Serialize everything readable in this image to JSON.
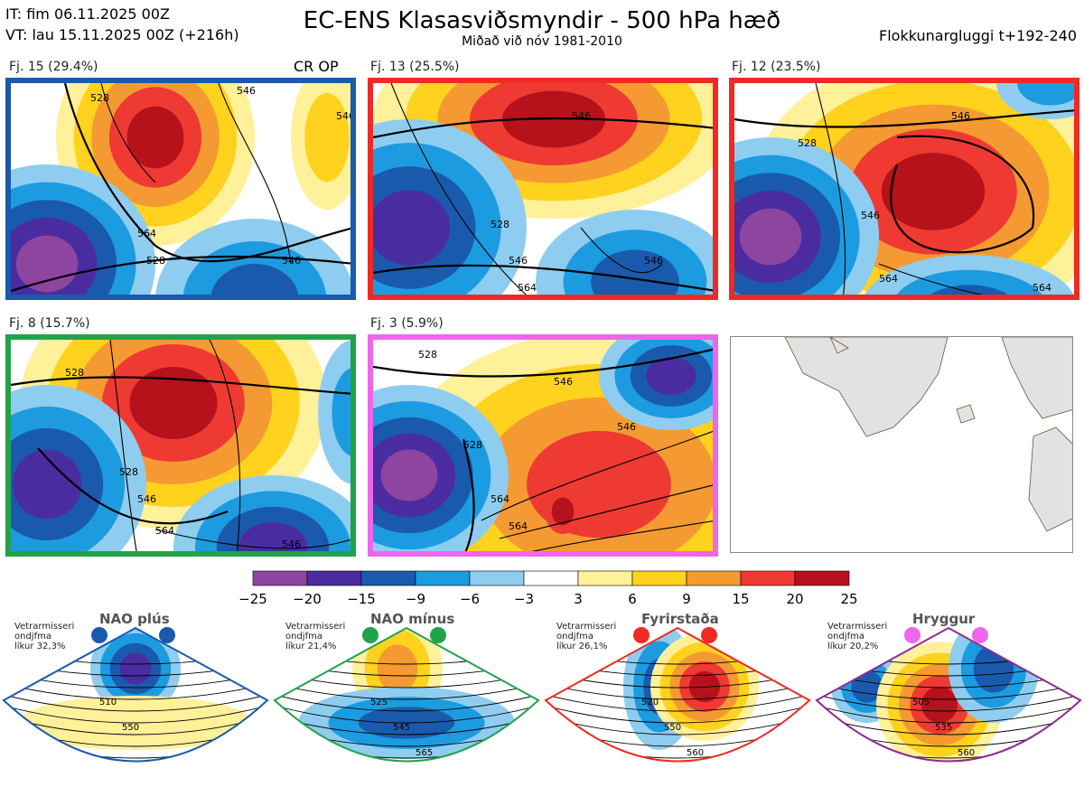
{
  "header": {
    "issued": "IT: fim 06.11.2025 00Z",
    "valid": "VT: lau 15.11.2025 00Z  (+216h)",
    "title": "EC-ENS Klasasviðsmyndir - 500 hPa hæð",
    "subtitle": "Miðað við nóv 1981-2010",
    "window": "Flokkunargluggi t+192-240"
  },
  "colors": {
    "scale": [
      "#8e45a0",
      "#4a2ca0",
      "#1a5aad",
      "#1d9be0",
      "#8fcdf0",
      "#ffffff",
      "#fff09a",
      "#ffd21e",
      "#f59a32",
      "#ee3a33",
      "#b5121b"
    ]
  },
  "chart_data": [
    {
      "type": "heatmap",
      "title": "Fj. 15 (29.4%)",
      "tag": "CR OP",
      "frame_color": "#1a5aad",
      "members": 15,
      "percent": 29.4,
      "contour_labels": [
        "528",
        "546",
        "564",
        "528",
        "546",
        "546"
      ]
    },
    {
      "type": "heatmap",
      "title": "Fj. 13 (25.5%)",
      "frame_color": "#ee2a24",
      "members": 13,
      "percent": 25.5,
      "contour_labels": [
        "546",
        "528",
        "546",
        "546",
        "564"
      ]
    },
    {
      "type": "heatmap",
      "title": "Fj. 12 (23.5%)",
      "frame_color": "#ee2a24",
      "members": 12,
      "percent": 23.5,
      "contour_labels": [
        "546",
        "528",
        "546",
        "564",
        "564"
      ]
    },
    {
      "type": "heatmap",
      "title": "Fj. 8 (15.7%)",
      "frame_color": "#22a34a",
      "members": 8,
      "percent": 15.7,
      "contour_labels": [
        "528",
        "528",
        "546",
        "564",
        "546"
      ]
    },
    {
      "type": "heatmap",
      "title": "Fj. 3 (5.9%)",
      "frame_color": "#ee66ee",
      "members": 3,
      "percent": 5.9,
      "contour_labels": [
        "528",
        "528",
        "546",
        "546",
        "564",
        "564"
      ]
    },
    {
      "type": "colorbar",
      "ticks": [
        "−25",
        "−20",
        "−15",
        "−9",
        "−6",
        "−3",
        "3",
        "6",
        "9",
        "15",
        "20",
        "25"
      ],
      "bounds": [
        -25,
        -20,
        -15,
        -9,
        -6,
        -3,
        3,
        6,
        9,
        15,
        20,
        25
      ]
    }
  ],
  "climatology": [
    {
      "name": "NAO plús",
      "note": [
        "Vetrarmisseri",
        "ondjfma",
        "líkur 32,3%"
      ],
      "dot_color": "#1a5aad",
      "frame_color": "#1a5aad",
      "labels": [
        "510",
        "550"
      ]
    },
    {
      "name": "NAO mínus",
      "note": [
        "Vetrarmisseri",
        "ondjfma",
        "líkur 21,4%"
      ],
      "dot_color": "#22a34a",
      "frame_color": "#22a34a",
      "labels": [
        "525",
        "545",
        "565"
      ]
    },
    {
      "name": "Fyrirstaða",
      "note": [
        "Vetrarmisseri",
        "ondjfma",
        "líkur 26,1%"
      ],
      "dot_color": "#ee2a24",
      "frame_color": "#ee2a24",
      "labels": [
        "520",
        "550",
        "560"
      ]
    },
    {
      "name": "Hryggur",
      "note": [
        "Vetrarmisseri",
        "ondjfma",
        "líkur 20,2%"
      ],
      "dot_color": "#ee66ee",
      "frame_color": "#8e2a8e",
      "labels": [
        "505",
        "535",
        "560"
      ]
    }
  ]
}
